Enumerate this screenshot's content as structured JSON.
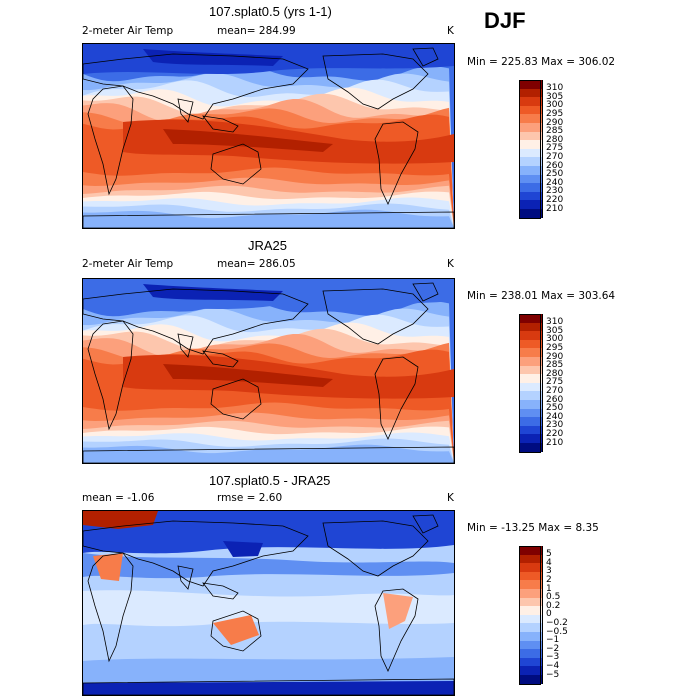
{
  "season": "DJF",
  "panels": [
    {
      "id": "model",
      "title": "107.splat0.5 (yrs 1-1)",
      "sub_left": "2-meter Air Temp",
      "sub_mid": "mean= 284.99",
      "sub_right": "K",
      "stats": "Min = 225.83 Max = 306.02",
      "colorbar": {
        "levels": [
          "310",
          "305",
          "300",
          "295",
          "290",
          "285",
          "280",
          "275",
          "270",
          "260",
          "250",
          "240",
          "230",
          "220",
          "210"
        ],
        "colors": [
          "#7f0000",
          "#b22000",
          "#d83a10",
          "#ee5a26",
          "#f77c4a",
          "#fca07c",
          "#fdc6ad",
          "#fff0e6",
          "#dbeaff",
          "#b4d2ff",
          "#87b2fb",
          "#5f8ff2",
          "#3c6ce6",
          "#1f45d4",
          "#0b22b4",
          "#000c80"
        ]
      },
      "field": "temperature"
    },
    {
      "id": "obs",
      "title": "JRA25",
      "sub_left": "2-meter Air Temp",
      "sub_mid": "mean= 286.05",
      "sub_right": "K",
      "stats": "Min = 238.01 Max = 303.64",
      "colorbar": {
        "levels": [
          "310",
          "305",
          "300",
          "295",
          "290",
          "285",
          "280",
          "275",
          "270",
          "260",
          "250",
          "240",
          "230",
          "220",
          "210"
        ],
        "colors": [
          "#7f0000",
          "#b22000",
          "#d83a10",
          "#ee5a26",
          "#f77c4a",
          "#fca07c",
          "#fdc6ad",
          "#fff0e6",
          "#dbeaff",
          "#b4d2ff",
          "#87b2fb",
          "#5f8ff2",
          "#3c6ce6",
          "#1f45d4",
          "#0b22b4",
          "#000c80"
        ]
      },
      "field": "temperature"
    },
    {
      "id": "diff",
      "title": "107.splat0.5 - JRA25",
      "sub_left": "mean =   -1.06",
      "sub_mid": "rmse =    2.60",
      "sub_right": "K",
      "stats": "Min = -13.25 Max =   8.35",
      "colorbar": {
        "levels": [
          "5",
          "4",
          "3",
          "2",
          "1",
          "0.5",
          "0.2",
          "0",
          "−0.2",
          "−0.5",
          "−1",
          "−2",
          "−3",
          "−4",
          "−5"
        ],
        "colors": [
          "#7f0000",
          "#b22000",
          "#d83a10",
          "#ee5a26",
          "#f77c4a",
          "#fca07c",
          "#fdc6ad",
          "#fff0e6",
          "#dbeaff",
          "#b4d2ff",
          "#87b2fb",
          "#5f8ff2",
          "#3c6ce6",
          "#1f45d4",
          "#0b22b4",
          "#000c80"
        ]
      },
      "field": "difference"
    }
  ]
}
